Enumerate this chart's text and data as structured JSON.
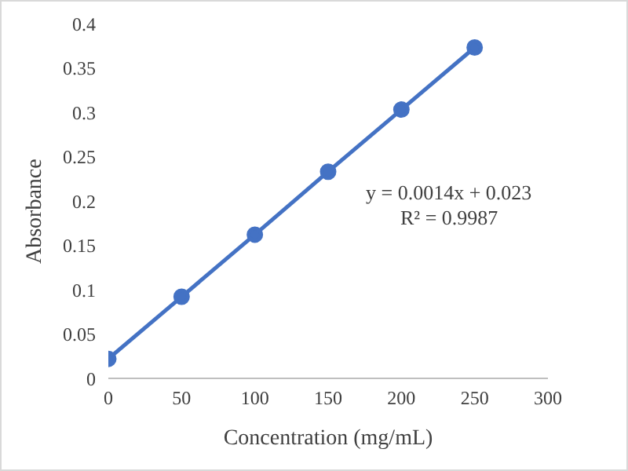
{
  "chart_data": {
    "type": "line",
    "xlabel": "Concentration (mg/mL)",
    "ylabel": "Absorbance",
    "x": [
      0,
      50,
      100,
      150,
      200,
      250
    ],
    "series": [
      {
        "color": "#4472c4",
        "values": [
          0.022,
          0.092,
          0.162,
          0.233,
          0.303,
          0.373
        ]
      }
    ],
    "xlim": [
      0,
      300
    ],
    "xticks": [
      0,
      50,
      100,
      150,
      200,
      250,
      300
    ],
    "ylim": [
      0,
      0.4
    ],
    "yticks": [
      0,
      0.05,
      0.1,
      0.15,
      0.2,
      0.25,
      0.3,
      0.35,
      0.4
    ],
    "marker": "circle",
    "line_style": "solid",
    "grid": false,
    "legend": false,
    "annotations": [
      "y = 0.0014x + 0.023",
      "R² = 0.9987"
    ]
  }
}
